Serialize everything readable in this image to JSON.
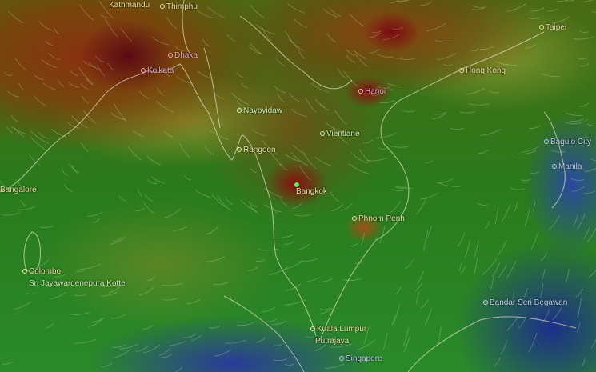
{
  "map": {
    "cities": [
      {
        "name": "Kathmandu"
      },
      {
        "name": "Thimphu"
      },
      {
        "name": "Dhaka"
      },
      {
        "name": "Kolkata"
      },
      {
        "name": "Naypyidaw"
      },
      {
        "name": "Rangoon"
      },
      {
        "name": "Bangkok"
      },
      {
        "name": "Vientiane"
      },
      {
        "name": "Hanoi"
      },
      {
        "name": "Hong Kong"
      },
      {
        "name": "Taipei"
      },
      {
        "name": "Baguio City"
      },
      {
        "name": "Manila"
      },
      {
        "name": "Bangalore"
      },
      {
        "name": "Phnom Penh"
      },
      {
        "name": "Colombo"
      },
      {
        "name": "Sri Jayawardenepura Kotte"
      },
      {
        "name": "Kuala Lumpur"
      },
      {
        "name": "Putrajaya"
      },
      {
        "name": "Singapore"
      },
      {
        "name": "Bandar Seri Begawan"
      }
    ],
    "colors": {
      "high": "#8a0d10",
      "medium": "#8a5a10",
      "low": "#2a8a2a",
      "very_low": "#2a3a9a"
    },
    "selected_location": "Bangkok"
  }
}
